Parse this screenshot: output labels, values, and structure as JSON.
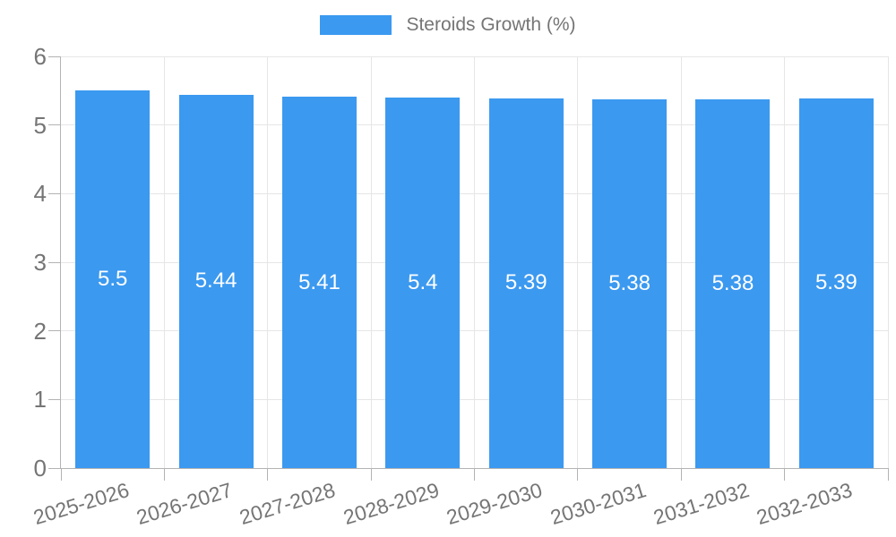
{
  "legend": {
    "label": "Steroids Growth (%)"
  },
  "chart_data": {
    "type": "bar",
    "title": "Steroids Growth (%)",
    "categories": [
      "2025-2026",
      "2026-2027",
      "2027-2028",
      "2028-2029",
      "2029-2030",
      "2030-2031",
      "2031-2032",
      "2032-2033"
    ],
    "values": [
      5.5,
      5.44,
      5.41,
      5.4,
      5.39,
      5.38,
      5.38,
      5.39
    ],
    "value_labels": [
      "5.5",
      "5.44",
      "5.41",
      "5.4",
      "5.39",
      "5.38",
      "5.38",
      "5.39"
    ],
    "xlabel": "",
    "ylabel": "",
    "ylim": [
      0,
      6
    ],
    "yticks": [
      0,
      1,
      2,
      3,
      4,
      5,
      6
    ],
    "grid": true,
    "legend_position": "top",
    "colors": {
      "bar": "#3b99f0",
      "bar_value_text": "#ffffff",
      "axis_text": "#757575",
      "gridline": "#e6e6e6",
      "axis_line": "#b3b3b3"
    }
  }
}
